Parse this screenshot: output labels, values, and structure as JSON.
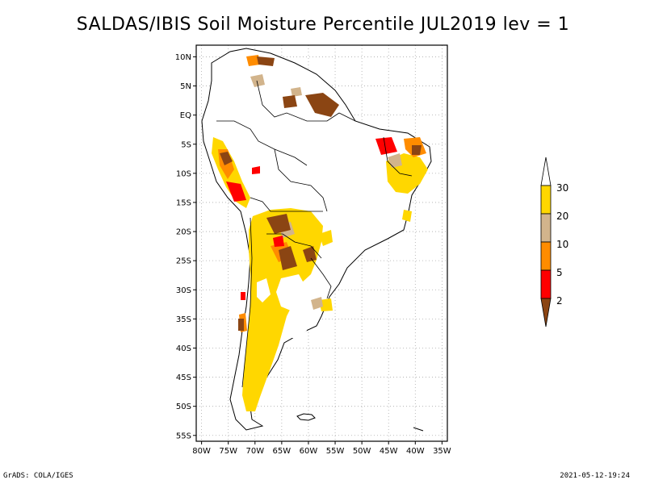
{
  "title": "SALDAS/IBIS Soil Moisture Percentile JUL2019 lev = 1",
  "lat_labels": [
    "10N",
    "5N",
    "EQ",
    "5S",
    "10S",
    "15S",
    "20S",
    "25S",
    "30S",
    "35S",
    "40S",
    "45S",
    "50S",
    "55S"
  ],
  "lon_labels": [
    "80W",
    "75W",
    "70W",
    "65W",
    "60W",
    "55W",
    "50W",
    "45W",
    "40W",
    "35W"
  ],
  "colorbar": {
    "labels": [
      "2",
      "5",
      "10",
      "20",
      "30"
    ],
    "colors": {
      "below_2": "#8b4513",
      "2_5": "#ff0000",
      "5_10": "#ff8c00",
      "10_20": "#d2b48c",
      "20_30": "#ffd700",
      "above_30": "#ffffff"
    }
  },
  "footer": {
    "left": "GrADS: COLA/IGES",
    "right": "2021-05-12-19:24"
  }
}
